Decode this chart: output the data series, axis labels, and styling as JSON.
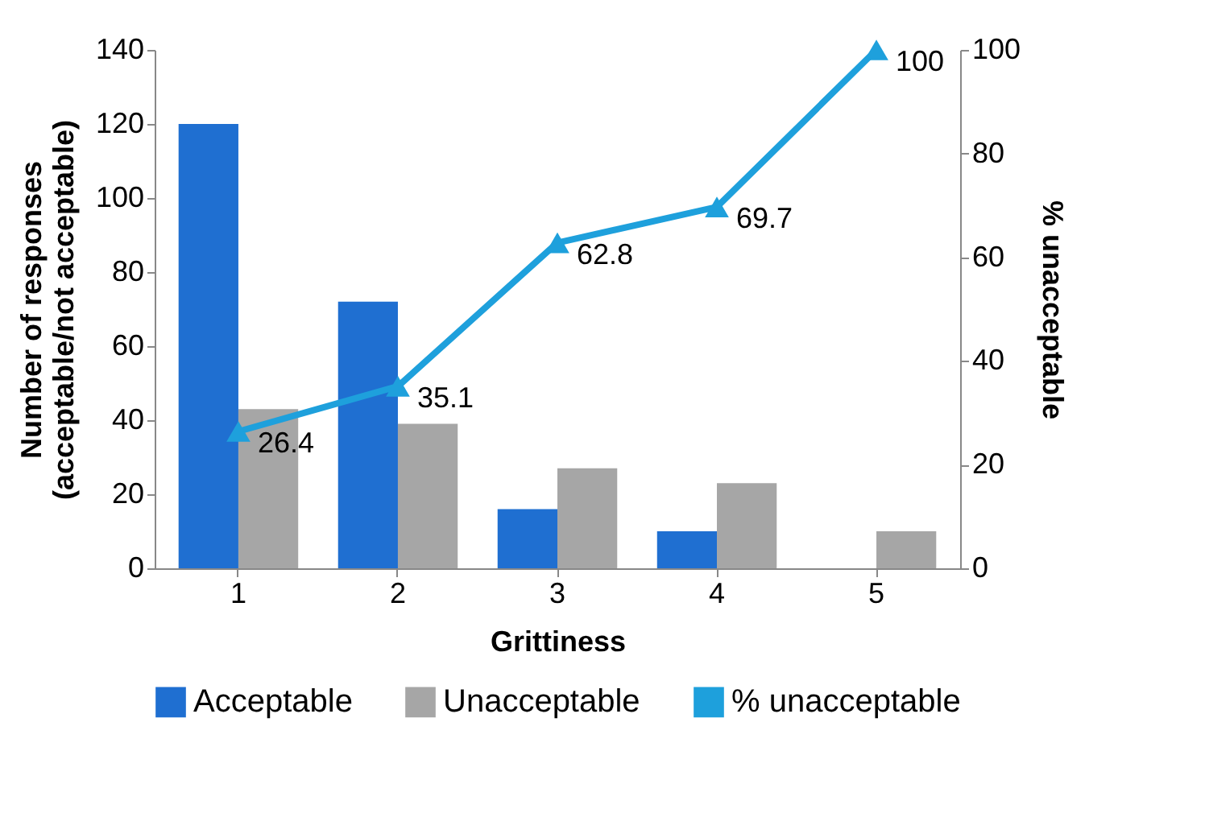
{
  "chart_data": {
    "type": "bar",
    "xlabel": "Grittiness",
    "ylabel": "Number of responses\n(acceptable/not acceptable)",
    "y2label": "% unacceptable",
    "categories": [
      "1",
      "2",
      "3",
      "4",
      "5"
    ],
    "series": [
      {
        "name": "Acceptable",
        "color": "#1f6fd1",
        "values": [
          120,
          72,
          16,
          10,
          0
        ]
      },
      {
        "name": "Unacceptable",
        "color": "#a6a6a6",
        "values": [
          43,
          39,
          27,
          23,
          10
        ]
      },
      {
        "name": "% unacceptable",
        "type": "line",
        "axis": "y2",
        "color": "#1ea0dc",
        "values": [
          26.4,
          35.1,
          62.8,
          69.7,
          100
        ],
        "marker": "triangle",
        "data_labels": true
      }
    ],
    "ylim": [
      0,
      140
    ],
    "yticks": [
      0,
      20,
      40,
      60,
      80,
      100,
      120,
      140
    ],
    "y2lim": [
      0,
      100
    ],
    "y2ticks": [
      0,
      20,
      40,
      60,
      80,
      100
    ],
    "grid": false,
    "legend": "bottom"
  }
}
